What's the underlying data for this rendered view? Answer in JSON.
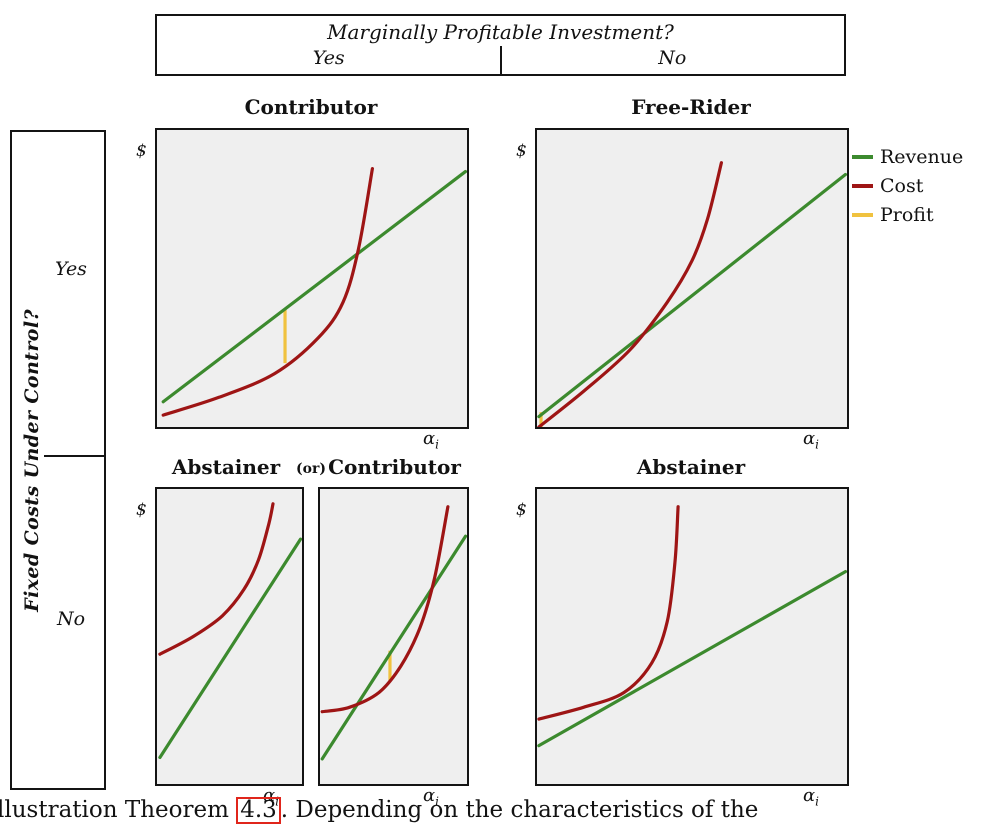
{
  "header": {
    "title": "Marginally Profitable Investment?",
    "col_yes": "Yes",
    "col_no": "No"
  },
  "row_header": {
    "title": "Fixed Costs Under Control?",
    "row_yes": "Yes",
    "row_no": "No"
  },
  "labels": {
    "or": "(or)"
  },
  "axis": {
    "dollar": "$",
    "alpha": "α",
    "alpha_sub": "i"
  },
  "legend": {
    "position": "right of top-right panel",
    "items": [
      {
        "label": "Revenue",
        "key": "revenue"
      },
      {
        "label": "Cost",
        "key": "cost"
      },
      {
        "label": "Profit",
        "key": "profit"
      }
    ]
  },
  "colors": {
    "revenue": "#3c8a2e",
    "cost": "#9e1515",
    "profit": "#f0c23f",
    "plot_bg": "#efefef",
    "plot_border": "#141414",
    "link_box": "#e0251b"
  },
  "caption": {
    "prefix": "llustration Theorem ",
    "link": "4.3",
    "suffix": ". Depending on the characteristics of the"
  },
  "chart_data": [
    {
      "id": "contributor-top-left",
      "type": "line",
      "title": "Contributor",
      "quadrant": {
        "marginally_profitable": "Yes",
        "fixed_costs_under_control": "Yes"
      },
      "xlabel": "α_i",
      "ylabel": "$",
      "x_range": [
        0,
        1
      ],
      "y_range": [
        0,
        1
      ],
      "grid": false,
      "series": [
        {
          "name": "Revenue",
          "kind": "linear",
          "points": [
            [
              0.02,
              0.085
            ],
            [
              0.995,
              0.86
            ]
          ]
        },
        {
          "name": "Cost",
          "kind": "curve",
          "points": [
            [
              0.02,
              0.04
            ],
            [
              0.2,
              0.1
            ],
            [
              0.38,
              0.18
            ],
            [
              0.52,
              0.3
            ],
            [
              0.6,
              0.42
            ],
            [
              0.65,
              0.6
            ],
            [
              0.695,
              0.87
            ]
          ]
        },
        {
          "name": "Profit",
          "kind": "vsegment",
          "x": 0.413,
          "y_top": 0.397,
          "y_bottom": 0.215
        }
      ]
    },
    {
      "id": "free-rider-top-right",
      "type": "line",
      "title": "Free-Rider",
      "quadrant": {
        "marginally_profitable": "No",
        "fixed_costs_under_control": "Yes"
      },
      "xlabel": "α_i",
      "ylabel": "$",
      "x_range": [
        0,
        1
      ],
      "y_range": [
        0,
        1
      ],
      "grid": false,
      "series": [
        {
          "name": "Revenue",
          "kind": "linear",
          "points": [
            [
              0.006,
              0.035
            ],
            [
              0.995,
              0.85
            ]
          ]
        },
        {
          "name": "Cost",
          "kind": "curve",
          "points": [
            [
              0.006,
              0.0
            ],
            [
              0.15,
              0.12
            ],
            [
              0.3,
              0.26
            ],
            [
              0.42,
              0.42
            ],
            [
              0.5,
              0.56
            ],
            [
              0.55,
              0.7
            ],
            [
              0.595,
              0.89
            ]
          ]
        },
        {
          "name": "Profit",
          "kind": "vsegment",
          "x": 0.013,
          "y_top": 0.05,
          "y_bottom": 0.0
        }
      ]
    },
    {
      "id": "abstainer-bottom-left",
      "type": "line",
      "title": "Abstainer",
      "quadrant": {
        "marginally_profitable": "Yes",
        "fixed_costs_under_control": "No"
      },
      "xlabel": "α_i",
      "ylabel": "$",
      "x_range": [
        0,
        1
      ],
      "y_range": [
        0,
        1
      ],
      "grid": false,
      "series": [
        {
          "name": "Revenue",
          "kind": "linear",
          "points": [
            [
              0.02,
              0.09
            ],
            [
              0.99,
              0.83
            ]
          ]
        },
        {
          "name": "Cost",
          "kind": "curve",
          "points": [
            [
              0.02,
              0.44
            ],
            [
              0.25,
              0.5
            ],
            [
              0.45,
              0.57
            ],
            [
              0.6,
              0.66
            ],
            [
              0.7,
              0.76
            ],
            [
              0.77,
              0.88
            ],
            [
              0.8,
              0.95
            ]
          ]
        }
      ]
    },
    {
      "id": "contributor-bottom-middle",
      "type": "line",
      "title": "Contributor",
      "quadrant": {
        "marginally_profitable": "Yes",
        "fixed_costs_under_control": "No"
      },
      "xlabel": "α_i",
      "ylabel": "$",
      "x_range": [
        0,
        1
      ],
      "y_range": [
        0,
        1
      ],
      "grid": false,
      "series": [
        {
          "name": "Revenue",
          "kind": "linear",
          "points": [
            [
              0.015,
              0.085
            ],
            [
              0.99,
              0.84
            ]
          ]
        },
        {
          "name": "Cost",
          "kind": "curve",
          "points": [
            [
              0.015,
              0.245
            ],
            [
              0.2,
              0.26
            ],
            [
              0.4,
              0.31
            ],
            [
              0.55,
              0.4
            ],
            [
              0.68,
              0.53
            ],
            [
              0.78,
              0.7
            ],
            [
              0.87,
              0.94
            ]
          ]
        },
        {
          "name": "Profit",
          "kind": "vsegment",
          "x": 0.476,
          "y_top": 0.452,
          "y_bottom": 0.35
        }
      ]
    },
    {
      "id": "abstainer-bottom-right",
      "type": "line",
      "title": "Abstainer",
      "quadrant": {
        "marginally_profitable": "No",
        "fixed_costs_under_control": "No"
      },
      "xlabel": "α_i",
      "ylabel": "$",
      "x_range": [
        0,
        1
      ],
      "y_range": [
        0,
        1
      ],
      "grid": false,
      "series": [
        {
          "name": "Revenue",
          "kind": "linear",
          "points": [
            [
              0.006,
              0.13
            ],
            [
              0.995,
              0.72
            ]
          ]
        },
        {
          "name": "Cost",
          "kind": "curve",
          "points": [
            [
              0.006,
              0.22
            ],
            [
              0.15,
              0.26
            ],
            [
              0.28,
              0.31
            ],
            [
              0.37,
              0.41
            ],
            [
              0.42,
              0.55
            ],
            [
              0.445,
              0.75
            ],
            [
              0.455,
              0.94
            ]
          ]
        }
      ]
    }
  ]
}
